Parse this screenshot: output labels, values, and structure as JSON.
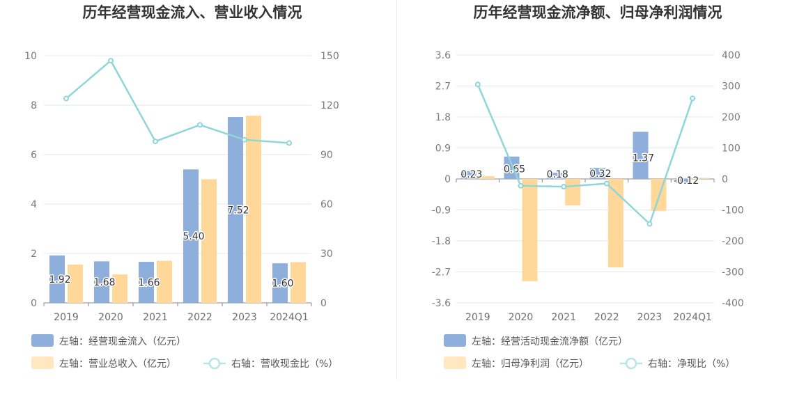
{
  "chart_data": [
    {
      "type": "bar",
      "title": "历年经营现金流入、营业收入情况",
      "categories": [
        "2019",
        "2020",
        "2021",
        "2022",
        "2023",
        "2024Q1"
      ],
      "left_axis": {
        "min": 0,
        "max": 10,
        "ticks": [
          "0",
          "2",
          "4",
          "6",
          "8",
          "10"
        ]
      },
      "right_axis": {
        "min": 0,
        "max": 150,
        "ticks": [
          "0",
          "30",
          "60",
          "90",
          "120",
          "150"
        ]
      },
      "series": [
        {
          "name": "左轴：经营现金流入（亿元）",
          "kind": "bar",
          "axis": "left",
          "color": "#8eaedc",
          "values": [
            1.92,
            1.68,
            1.66,
            5.4,
            7.52,
            1.6
          ],
          "labels": [
            "1.92",
            "1.68",
            "1.66",
            "5.40",
            "7.52",
            "1.60"
          ]
        },
        {
          "name": "左轴：营业总收入（亿元）",
          "kind": "bar",
          "axis": "left",
          "color": "#ffd899",
          "values": [
            1.55,
            1.15,
            1.7,
            5.0,
            7.57,
            1.65
          ]
        },
        {
          "name": "右轴：营收现金比（%）",
          "kind": "line",
          "axis": "right",
          "color": "#8dd6d9",
          "values": [
            124,
            147,
            98,
            108,
            99,
            97
          ]
        }
      ],
      "grid": true,
      "legend_position": "bottom-left"
    },
    {
      "type": "bar",
      "title": "历年经营现金流净额、归母净利润情况",
      "categories": [
        "2019",
        "2020",
        "2021",
        "2022",
        "2023",
        "2024Q1"
      ],
      "left_axis": {
        "min": -3.6,
        "max": 3.6,
        "ticks": [
          "-3.6",
          "-2.7",
          "-1.8",
          "-0.9",
          "0",
          "0.9",
          "1.8",
          "2.7",
          "3.6"
        ]
      },
      "right_axis": {
        "min": -400,
        "max": 400,
        "ticks": [
          "-400",
          "-300",
          "-200",
          "-100",
          "0",
          "100",
          "200",
          "300",
          "400"
        ]
      },
      "series": [
        {
          "name": "左轴：经营活动现金流净额（亿元）",
          "kind": "bar",
          "axis": "left",
          "color": "#8eaedc",
          "values": [
            0.23,
            0.65,
            0.18,
            0.32,
            1.37,
            -0.12
          ],
          "labels": [
            "0.23",
            "0.65",
            "0.18",
            "0.32",
            "1.37",
            "-0.12"
          ]
        },
        {
          "name": "左轴：归母净利润（亿元）",
          "kind": "bar",
          "axis": "left",
          "color": "#ffd899",
          "values": [
            0.08,
            -2.97,
            -0.77,
            -2.57,
            -0.93,
            0.03
          ]
        },
        {
          "name": "右轴：净现比（%）",
          "kind": "line",
          "axis": "right",
          "color": "#8dd6d9",
          "values": [
            305,
            -22,
            -25,
            -15,
            -145,
            260
          ]
        }
      ],
      "grid": true,
      "legend_position": "bottom-left"
    }
  ]
}
